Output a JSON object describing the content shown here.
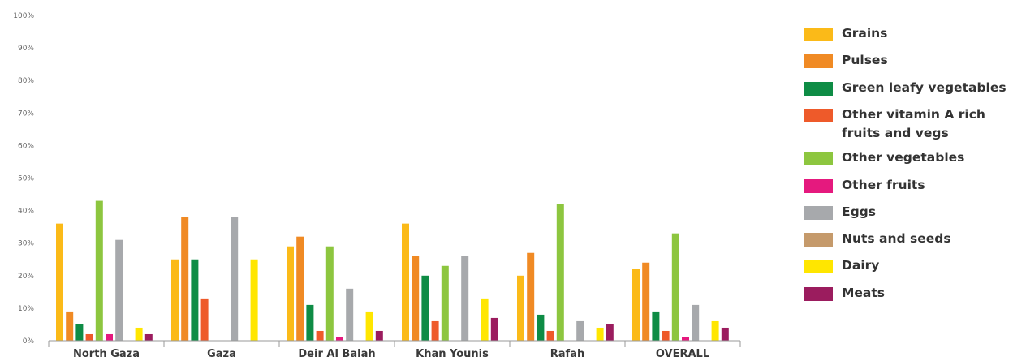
{
  "chart_data": {
    "type": "bar",
    "categories": [
      "North Gaza",
      "Gaza",
      "Deir Al Balah",
      "Khan Younis",
      "Rafah",
      "OVERALL"
    ],
    "yticks": [
      "0%",
      "10%",
      "20%",
      "30%",
      "40%",
      "50%",
      "60%",
      "70%",
      "80%",
      "90%",
      "100%"
    ],
    "ylim": [
      0,
      100
    ],
    "grid": false,
    "legend_position": "right",
    "series": [
      {
        "name": "Grains",
        "color": "#FBBA18",
        "values": [
          36,
          25,
          29,
          36,
          20,
          22
        ]
      },
      {
        "name": "Pulses",
        "color": "#F08A24",
        "values": [
          9,
          38,
          32,
          26,
          27,
          24
        ]
      },
      {
        "name": "Green leafy vegetables",
        "color": "#0E8C45",
        "values": [
          5,
          25,
          11,
          20,
          8,
          9
        ]
      },
      {
        "name": "Other vitamin A rich fruits and vegs",
        "color": "#EE5A2A",
        "values": [
          2,
          13,
          3,
          6,
          3,
          3
        ]
      },
      {
        "name": "Other vegetables",
        "color": "#8DC63F",
        "values": [
          43,
          0,
          29,
          23,
          42,
          33
        ]
      },
      {
        "name": "Other fruits",
        "color": "#E5197E",
        "values": [
          2,
          0,
          1,
          0,
          0,
          1
        ]
      },
      {
        "name": "Eggs",
        "color": "#A7A9AC",
        "values": [
          31,
          38,
          16,
          26,
          6,
          11
        ]
      },
      {
        "name": "Nuts and seeds",
        "color": "#C59A6B",
        "values": [
          0,
          0,
          0,
          0,
          0,
          0
        ]
      },
      {
        "name": "Dairy",
        "color": "#FFE600",
        "values": [
          4,
          25,
          9,
          13,
          4,
          6
        ]
      },
      {
        "name": "Meats",
        "color": "#9B1C5E",
        "values": [
          2,
          0,
          3,
          7,
          5,
          4
        ]
      }
    ]
  }
}
